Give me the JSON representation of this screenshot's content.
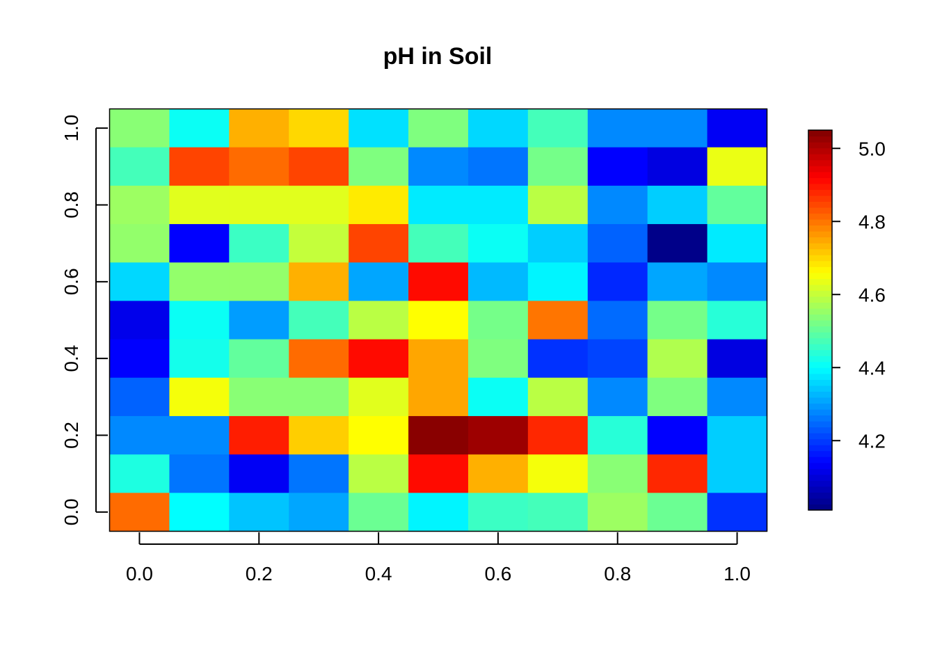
{
  "chart_data": {
    "type": "heatmap",
    "title": "pH in Soil",
    "xlabel": "",
    "ylabel": "",
    "x": [
      0.0,
      0.1,
      0.2,
      0.3,
      0.4,
      0.5,
      0.6,
      0.7,
      0.8,
      0.9,
      1.0
    ],
    "y": [
      0.0,
      0.1,
      0.2,
      0.3,
      0.4,
      0.5,
      0.6,
      0.7,
      0.8,
      0.9,
      1.0
    ],
    "xlim": [
      -0.05,
      1.05
    ],
    "ylim": [
      -0.05,
      1.05
    ],
    "x_ticks": [
      "0.0",
      "0.2",
      "0.4",
      "0.6",
      "0.8",
      "1.0"
    ],
    "y_ticks": [
      "0.0",
      "0.2",
      "0.4",
      "0.6",
      "0.8",
      "1.0"
    ],
    "x_tick_values": [
      0.0,
      0.2,
      0.4,
      0.6,
      0.8,
      1.0
    ],
    "y_tick_values": [
      0.0,
      0.2,
      0.4,
      0.6,
      0.8,
      1.0
    ],
    "z_rows_top_to_bottom": [
      [
        4.54,
        4.41,
        4.74,
        4.7,
        4.37,
        4.53,
        4.36,
        4.47,
        4.28,
        4.28,
        4.13
      ],
      [
        4.47,
        4.85,
        4.81,
        4.85,
        4.53,
        4.28,
        4.26,
        4.52,
        4.14,
        4.11,
        4.64
      ],
      [
        4.56,
        4.63,
        4.63,
        4.63,
        4.68,
        4.38,
        4.38,
        4.59,
        4.28,
        4.35,
        4.5
      ],
      [
        4.55,
        4.14,
        4.46,
        4.6,
        4.85,
        4.47,
        4.41,
        4.35,
        4.24,
        4.02,
        4.38
      ],
      [
        4.36,
        4.55,
        4.55,
        4.74,
        4.31,
        4.91,
        4.33,
        4.39,
        4.18,
        4.31,
        4.28
      ],
      [
        4.12,
        4.41,
        4.3,
        4.47,
        4.59,
        4.66,
        4.52,
        4.8,
        4.25,
        4.52,
        4.44
      ],
      [
        4.14,
        4.42,
        4.5,
        4.81,
        4.91,
        4.75,
        4.53,
        4.19,
        4.21,
        4.58,
        4.11
      ],
      [
        4.24,
        4.65,
        4.54,
        4.54,
        4.63,
        4.75,
        4.41,
        4.59,
        4.28,
        4.53,
        4.28
      ],
      [
        4.28,
        4.28,
        4.89,
        4.71,
        4.66,
        5.04,
        5.02,
        4.88,
        4.44,
        4.14,
        4.35
      ],
      [
        4.43,
        4.26,
        4.13,
        4.26,
        4.59,
        4.91,
        4.74,
        4.65,
        4.54,
        4.88,
        4.35
      ],
      [
        4.81,
        4.4,
        4.34,
        4.31,
        4.51,
        4.39,
        4.46,
        4.47,
        4.56,
        4.51,
        4.19
      ]
    ],
    "zlim": [
      4.01,
      5.05
    ],
    "colorbar": {
      "ticks": [
        "4.2",
        "4.4",
        "4.6",
        "4.8",
        "5.0"
      ],
      "tick_values": [
        4.2,
        4.4,
        4.6,
        4.8,
        5.0
      ],
      "colors": [
        "#00007F",
        "#0000FF",
        "#007FFF",
        "#00FFFF",
        "#7FFF7F",
        "#FFFF00",
        "#FF7F00",
        "#FF0000",
        "#7F0000"
      ]
    },
    "grid": false,
    "legend": "colorbar-right"
  }
}
